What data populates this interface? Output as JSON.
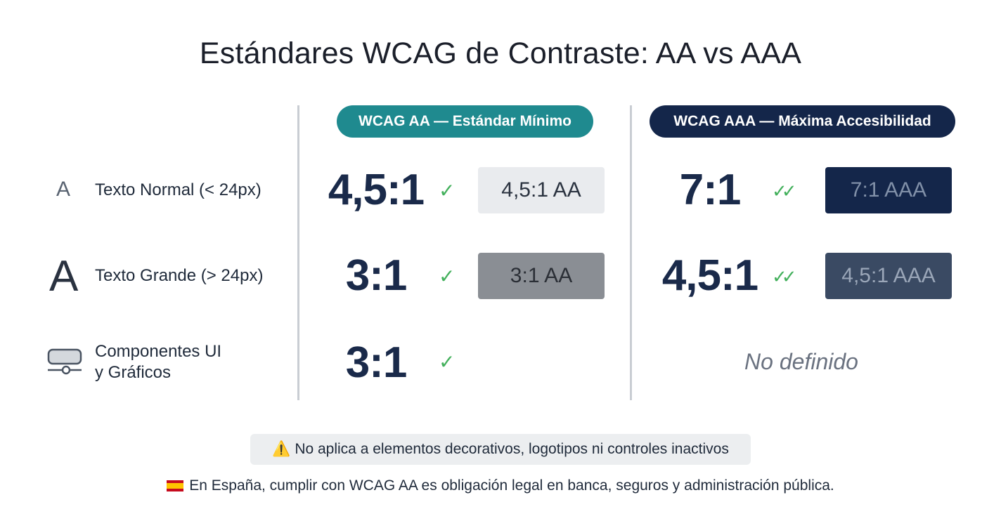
{
  "title": "Estándares WCAG de Contraste: AA vs AAA",
  "columns": {
    "aa": {
      "label": "WCAG AA — Estándar Mínimo",
      "color": "#1f8a8f"
    },
    "aaa": {
      "label": "WCAG AAA — Máxima Accesibilidad",
      "color": "#14264a"
    }
  },
  "rows": [
    {
      "label": "Texto Normal (< 24px)",
      "icon": "letter-a-small-icon",
      "aa_ratio": "4,5:1",
      "aa_sample": "4,5:1 AA",
      "aaa_ratio": "7:1",
      "aaa_sample": "7:1 AAA"
    },
    {
      "label": "Texto Grande (> 24px)",
      "icon": "letter-a-large-icon",
      "aa_ratio": "3:1",
      "aa_sample": "3:1 AA",
      "aaa_ratio": "4,5:1",
      "aaa_sample": "4,5:1 AAA"
    },
    {
      "label_line1": "Componentes UI",
      "label_line2": "y Gráficos",
      "icon": "ui-component-slider-icon",
      "aa_ratio": "3:1",
      "aaa_text": "No definido"
    }
  ],
  "icon_glyphs": {
    "letter_a": "A",
    "check": "✓",
    "double_check": "✓✓",
    "warning": "⚠️"
  },
  "notice": "No aplica a elementos decorativos, logotipos ni controles inactivos",
  "footnote": "En España, cumplir con WCAG AA es obligación legal en banca, seguros y administración pública."
}
